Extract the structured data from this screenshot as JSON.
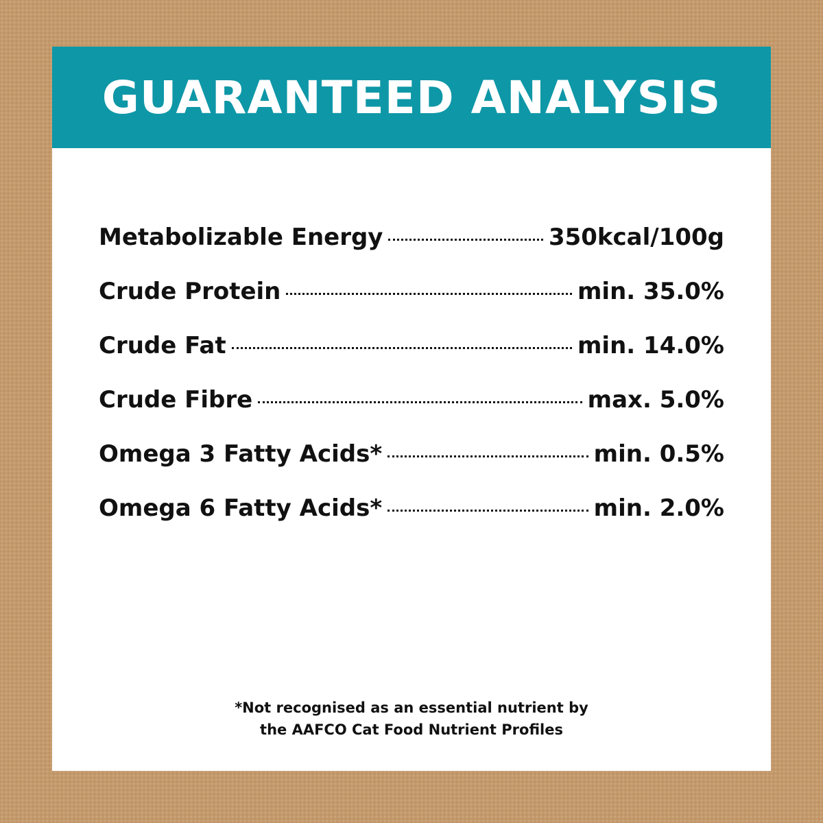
{
  "header": {
    "title": "GUARANTEED ANALYSIS"
  },
  "rows": [
    {
      "label": "Metabolizable Energy",
      "value": "350kcal/100g"
    },
    {
      "label": "Crude Protein",
      "value": "min. 35.0%"
    },
    {
      "label": "Crude Fat",
      "value": "min. 14.0%"
    },
    {
      "label": "Crude Fibre",
      "value": "max. 5.0%"
    },
    {
      "label": "Omega 3 Fatty Acids*",
      "value": "min. 0.5%"
    },
    {
      "label": "Omega 6 Fatty Acids*",
      "value": "min. 2.0%"
    }
  ],
  "footnote": [
    "*Not recognised as an essential nutrient by",
    "the AAFCO Cat Food Nutrient Profiles"
  ]
}
